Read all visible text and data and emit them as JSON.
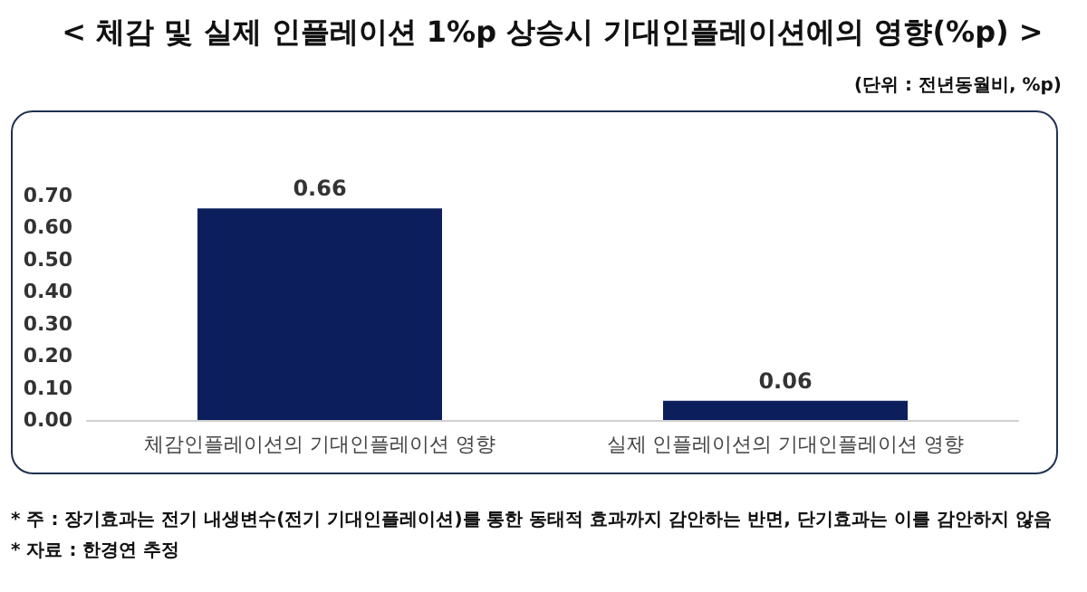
{
  "chart_data": {
    "type": "bar",
    "title": "< 체감 및 실제 인플레이션 1%p 상승시 기대인플레이션에의 영향(%p) >",
    "subtitle": "(단위 : 전년동월비, %p)",
    "categories": [
      "체감인플레이션의 기대인플레이션 영향",
      "실제 인플레이션의 기대인플레이션 영향"
    ],
    "values": [
      0.66,
      0.06
    ],
    "color": "#0c1f5c",
    "ylim": [
      0,
      0.7
    ],
    "yticks": [
      {
        "value": 0,
        "label": "0.00"
      },
      {
        "value": 0.1,
        "label": "0.10"
      },
      {
        "value": 0.2,
        "label": "0.20"
      },
      {
        "value": 0.3,
        "label": "0.30"
      },
      {
        "value": 0.4,
        "label": "0.40"
      },
      {
        "value": 0.5,
        "label": "0.50"
      },
      {
        "value": 0.6,
        "label": "0.60"
      },
      {
        "value": 0.7,
        "label": "0.70"
      }
    ],
    "grid": false,
    "data_labels": true,
    "annotations": [
      "* 주 : 장기효과는 전기 내생변수(전기 기대인플레이션)를 통한 동태적 효과까지 감안하는 반면, 단기효과는 이를 감안하지 않음",
      "* 자료 : 한경연 추정"
    ]
  }
}
